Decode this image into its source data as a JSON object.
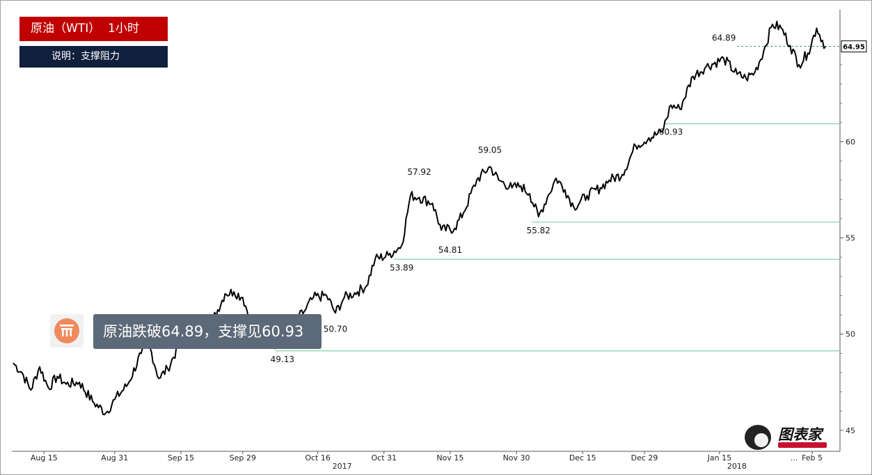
{
  "header": {
    "title": "原油（WTI）  1小时",
    "subtitle": "说明：支撑阻力"
  },
  "notice": {
    "icon": "coin-icon",
    "text": "原油跌破64.89，支撑见60.93"
  },
  "watermark": {
    "logo_text": "图表家",
    "icon": "mascot-logo-icon"
  },
  "colors": {
    "title_bg": "#c00000",
    "subtitle_bg": "#0f1f3c",
    "notice_bg": "#5c6978",
    "price_line": "#000000",
    "support_line": "#7fd1ae",
    "last_price_line": "#2e8b57"
  },
  "chart_data": {
    "type": "line",
    "title": "",
    "xlabel": "",
    "ylabel": "",
    "x_ticks": [
      "Aug 15",
      "Aug 31",
      "Sep 15",
      "Sep 29",
      "Oct 16",
      "Oct 31",
      "Nov 15",
      "Nov 30",
      "Dec 15",
      "Dec 29",
      "Jan 15",
      "Feb 5"
    ],
    "year_labels": [
      "2017",
      "2018"
    ],
    "x_extra_label": "...",
    "y_ticks": [
      45,
      50,
      55,
      60
    ],
    "ylim": [
      44.2,
      67.0
    ],
    "grid": false,
    "y_axis_side": "right",
    "last_price": 64.95,
    "support_levels": [
      49.13,
      53.89,
      55.82,
      60.93
    ],
    "annotations": [
      {
        "label": "49.13",
        "x": "Oct 8",
        "y": 49.13
      },
      {
        "label": "50.70",
        "x": "Oct 20",
        "y": 50.7
      },
      {
        "label": "53.89",
        "x": "Nov 4",
        "y": 53.89
      },
      {
        "label": "57.92",
        "x": "Nov 8",
        "y": 57.92
      },
      {
        "label": "54.81",
        "x": "Nov 15",
        "y": 54.81
      },
      {
        "label": "59.05",
        "x": "Nov 24",
        "y": 59.05
      },
      {
        "label": "55.82",
        "x": "Dec 5",
        "y": 55.82
      },
      {
        "label": "60.93",
        "x": "Jan 4",
        "y": 60.93
      },
      {
        "label": "64.89",
        "x": "Jan 16",
        "y": 64.89
      }
    ],
    "series": [
      {
        "points": [
          {
            "x": "Aug 8",
            "y": 48.5
          },
          {
            "x": "Aug 10",
            "y": 48.0
          },
          {
            "x": "Aug 12",
            "y": 47.1
          },
          {
            "x": "Aug 14",
            "y": 48.3
          },
          {
            "x": "Aug 16",
            "y": 47.2
          },
          {
            "x": "Aug 18",
            "y": 47.8
          },
          {
            "x": "Aug 20",
            "y": 47.4
          },
          {
            "x": "Aug 23",
            "y": 47.5
          },
          {
            "x": "Aug 26",
            "y": 46.5
          },
          {
            "x": "Aug 29",
            "y": 45.9
          },
          {
            "x": "Aug 31",
            "y": 46.6
          },
          {
            "x": "Sep 3",
            "y": 47.4
          },
          {
            "x": "Sep 6",
            "y": 49.0
          },
          {
            "x": "Sep 8",
            "y": 49.3
          },
          {
            "x": "Sep 10",
            "y": 47.7
          },
          {
            "x": "Sep 12",
            "y": 48.2
          },
          {
            "x": "Sep 15",
            "y": 49.6
          },
          {
            "x": "Sep 18",
            "y": 50.0
          },
          {
            "x": "Sep 22",
            "y": 50.6
          },
          {
            "x": "Sep 25",
            "y": 52.1
          },
          {
            "x": "Sep 27",
            "y": 52.2
          },
          {
            "x": "Sep 29",
            "y": 51.9
          },
          {
            "x": "Oct 1",
            "y": 50.6
          },
          {
            "x": "Oct 4",
            "y": 49.8
          },
          {
            "x": "Oct 8",
            "y": 49.3
          },
          {
            "x": "Oct 11",
            "y": 50.7
          },
          {
            "x": "Oct 13",
            "y": 51.2
          },
          {
            "x": "Oct 15",
            "y": 51.9
          },
          {
            "x": "Oct 18",
            "y": 52.0
          },
          {
            "x": "Oct 20",
            "y": 51.1
          },
          {
            "x": "Oct 22",
            "y": 51.9
          },
          {
            "x": "Oct 25",
            "y": 52.2
          },
          {
            "x": "Oct 27",
            "y": 52.5
          },
          {
            "x": "Oct 29",
            "y": 53.9
          },
          {
            "x": "Nov 1",
            "y": 54.1
          },
          {
            "x": "Nov 4",
            "y": 54.6
          },
          {
            "x": "Nov 6",
            "y": 57.2
          },
          {
            "x": "Nov 8",
            "y": 57.1
          },
          {
            "x": "Nov 11",
            "y": 56.8
          },
          {
            "x": "Nov 13",
            "y": 55.4
          },
          {
            "x": "Nov 16",
            "y": 55.5
          },
          {
            "x": "Nov 18",
            "y": 56.3
          },
          {
            "x": "Nov 21",
            "y": 58.0
          },
          {
            "x": "Nov 24",
            "y": 58.7
          },
          {
            "x": "Nov 26",
            "y": 58.0
          },
          {
            "x": "Nov 29",
            "y": 57.6
          },
          {
            "x": "Dec 1",
            "y": 57.7
          },
          {
            "x": "Dec 3",
            "y": 57.3
          },
          {
            "x": "Dec 5",
            "y": 56.1
          },
          {
            "x": "Dec 7",
            "y": 57.1
          },
          {
            "x": "Dec 9",
            "y": 58.1
          },
          {
            "x": "Dec 11",
            "y": 57.5
          },
          {
            "x": "Dec 13",
            "y": 56.6
          },
          {
            "x": "Dec 16",
            "y": 57.2
          },
          {
            "x": "Dec 19",
            "y": 57.6
          },
          {
            "x": "Dec 21",
            "y": 58.0
          },
          {
            "x": "Dec 24",
            "y": 58.3
          },
          {
            "x": "Dec 27",
            "y": 59.8
          },
          {
            "x": "Dec 30",
            "y": 60.2
          },
          {
            "x": "Jan 2",
            "y": 60.5
          },
          {
            "x": "Jan 4",
            "y": 61.9
          },
          {
            "x": "Jan 6",
            "y": 61.7
          },
          {
            "x": "Jan 9",
            "y": 63.4
          },
          {
            "x": "Jan 12",
            "y": 63.9
          },
          {
            "x": "Jan 16",
            "y": 64.3
          },
          {
            "x": "Jan 19",
            "y": 63.5
          },
          {
            "x": "Jan 21",
            "y": 63.3
          },
          {
            "x": "Jan 23",
            "y": 63.6
          },
          {
            "x": "Jan 25",
            "y": 64.7
          },
          {
            "x": "Jan 27",
            "y": 66.1
          },
          {
            "x": "Jan 29",
            "y": 65.9
          },
          {
            "x": "Jan 31",
            "y": 65.0
          },
          {
            "x": "Feb 2",
            "y": 64.0
          },
          {
            "x": "Feb 4",
            "y": 64.6
          },
          {
            "x": "Feb 6",
            "y": 65.9
          },
          {
            "x": "Feb 8",
            "y": 64.95
          }
        ]
      }
    ]
  }
}
